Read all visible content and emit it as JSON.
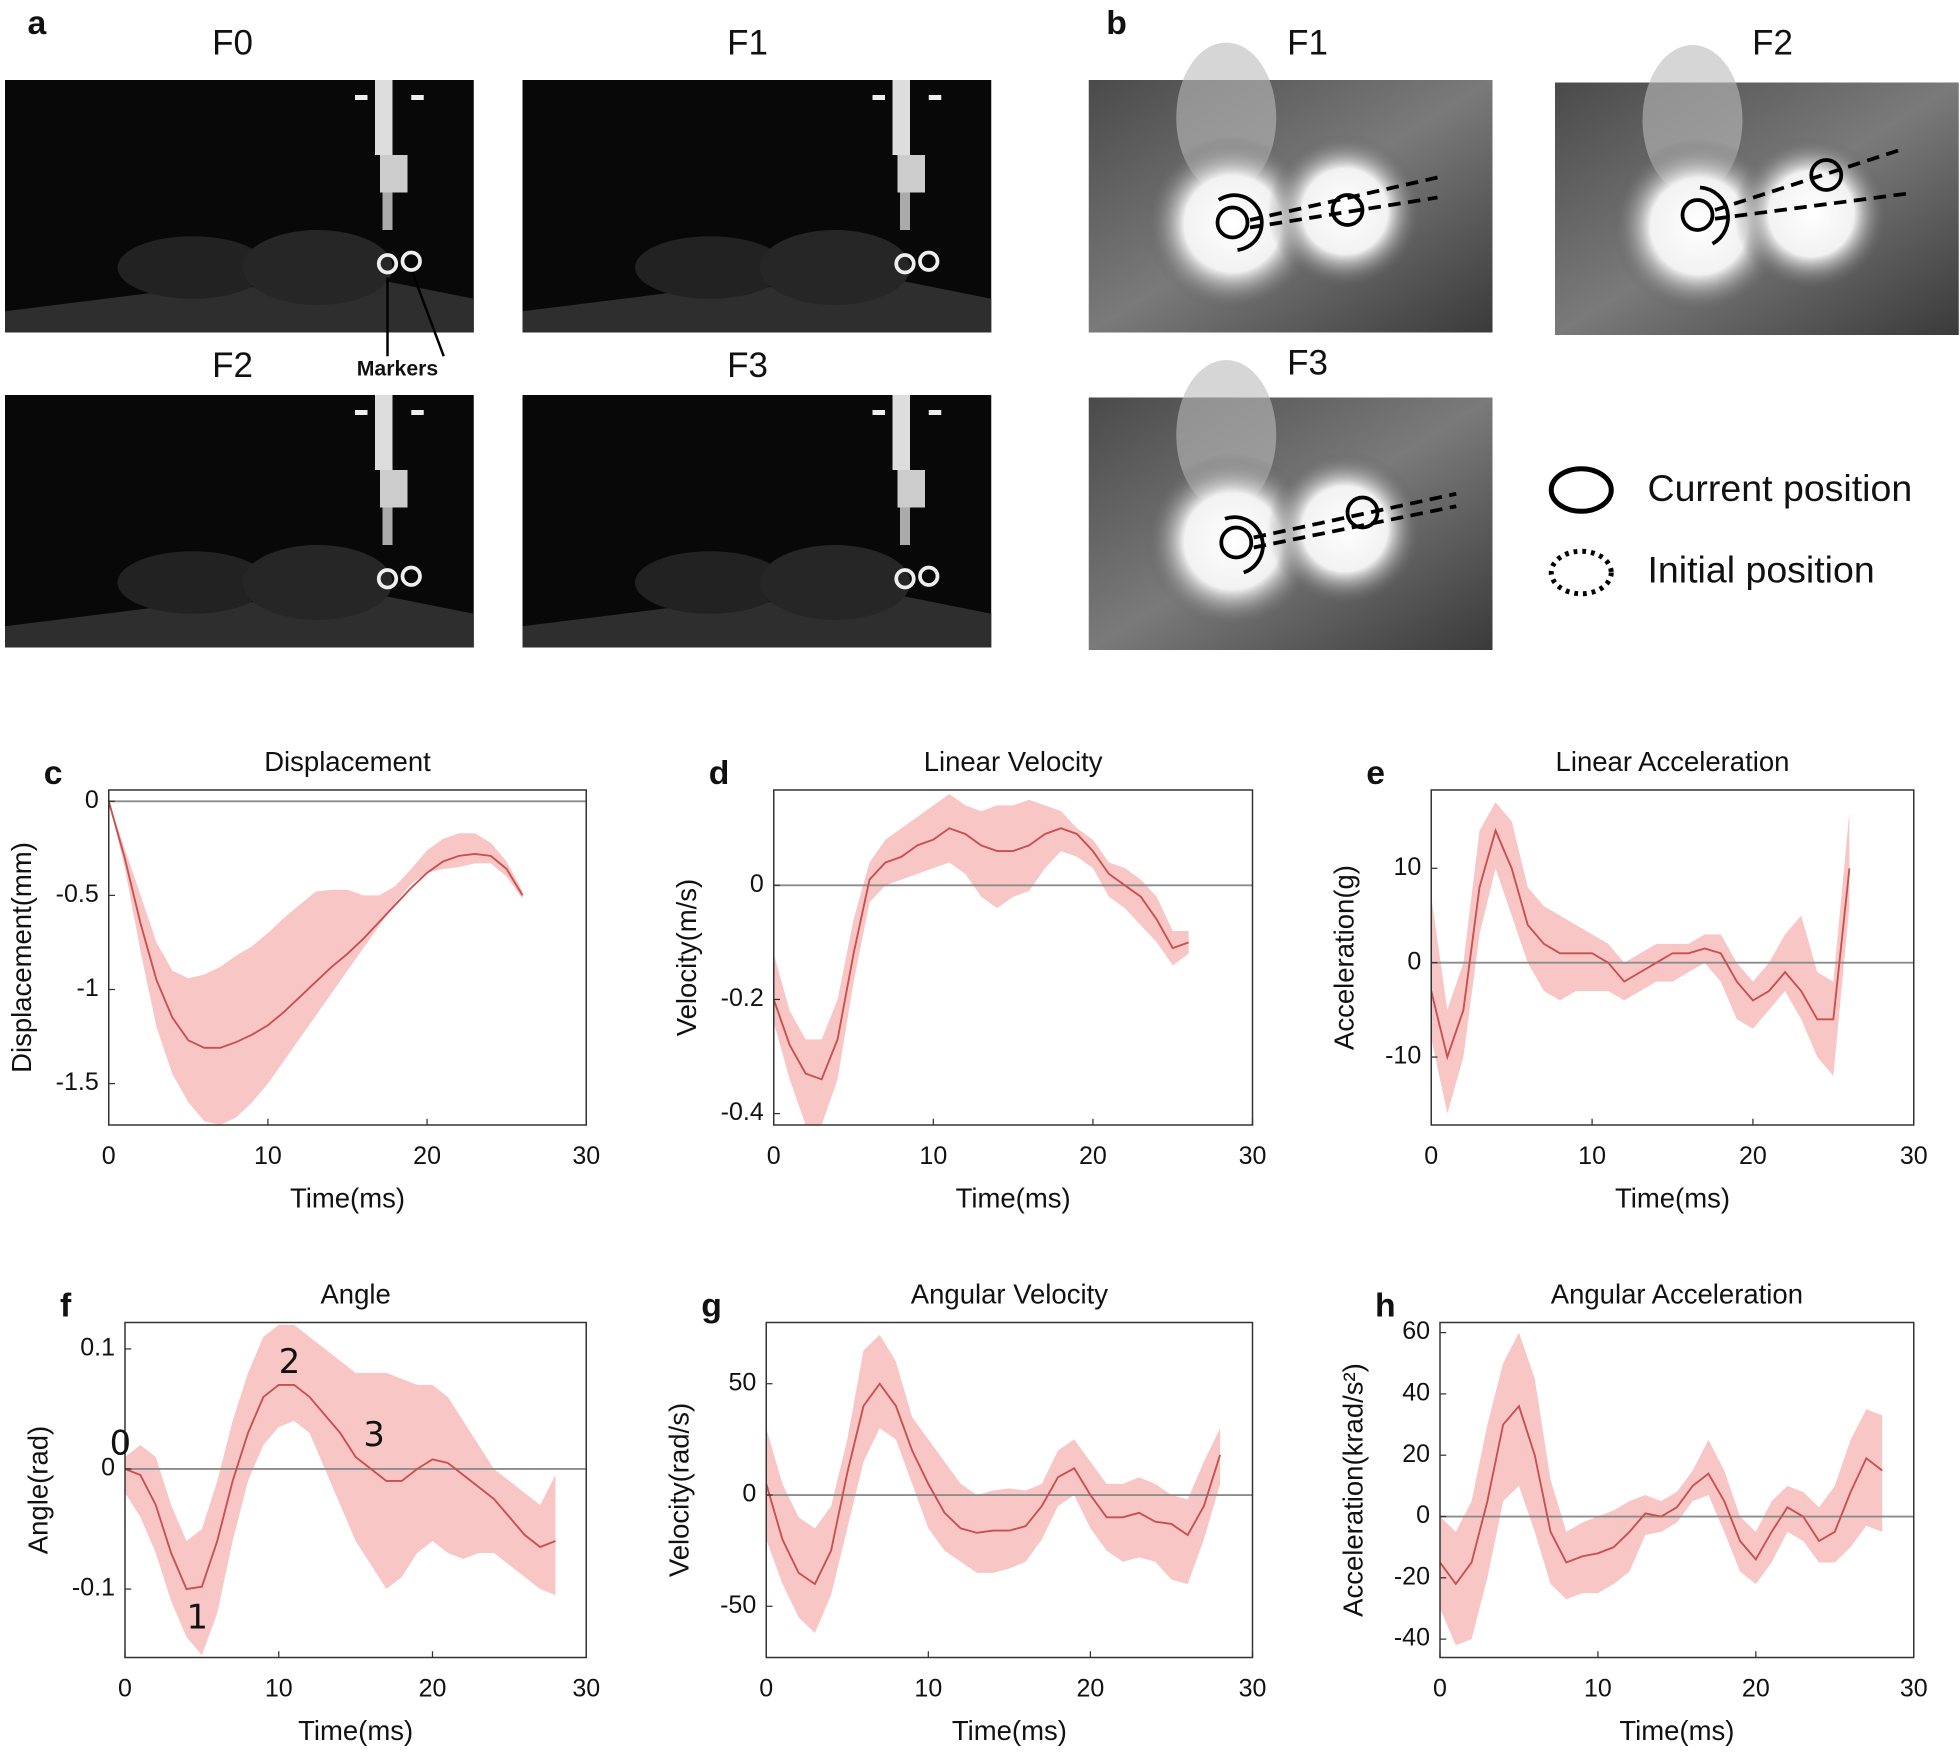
{
  "panel_a": {
    "label": "a",
    "frames": [
      "F0",
      "F1",
      "F2",
      "F3"
    ],
    "marker_label": "Markers"
  },
  "panel_b": {
    "label": "b",
    "frames": [
      "F1",
      "F2",
      "F3"
    ],
    "legend": [
      "Current position",
      "Initial position"
    ]
  },
  "chart_data": [
    {
      "type": "line",
      "panel_label": "c",
      "title": "Displacement",
      "xlabel": "Time(ms)",
      "ylabel": "Displacement(mm)",
      "xlim": [
        0,
        30
      ],
      "xticks": [
        0,
        10,
        20,
        30
      ],
      "ylim": [
        -1.72,
        0.06
      ],
      "yticks": [
        -1.5,
        -1,
        -0.5,
        0
      ],
      "zero_line": true,
      "x": [
        0,
        1,
        2,
        3,
        4,
        5,
        6,
        7,
        8,
        9,
        10,
        11,
        12,
        13,
        14,
        15,
        16,
        17,
        18,
        19,
        20,
        21,
        22,
        23,
        24,
        25,
        26
      ],
      "series": [
        {
          "color": "#c8504f",
          "band_color": "#f9c6c6",
          "values": [
            0,
            -0.3,
            -0.65,
            -0.95,
            -1.15,
            -1.27,
            -1.31,
            -1.31,
            -1.28,
            -1.24,
            -1.19,
            -1.12,
            -1.04,
            -0.96,
            -0.88,
            -0.81,
            -0.73,
            -0.64,
            -0.55,
            -0.46,
            -0.38,
            -0.32,
            -0.29,
            -0.28,
            -0.29,
            -0.36,
            -0.5
          ],
          "lower": [
            0,
            -0.35,
            -0.8,
            -1.2,
            -1.45,
            -1.6,
            -1.7,
            -1.72,
            -1.68,
            -1.6,
            -1.5,
            -1.38,
            -1.26,
            -1.14,
            -1.02,
            -0.9,
            -0.78,
            -0.66,
            -0.54,
            -0.44,
            -0.38,
            -0.36,
            -0.35,
            -0.33,
            -0.33,
            -0.4,
            -0.52
          ],
          "upper": [
            0,
            -0.25,
            -0.5,
            -0.75,
            -0.9,
            -0.94,
            -0.92,
            -0.88,
            -0.82,
            -0.77,
            -0.7,
            -0.62,
            -0.55,
            -0.48,
            -0.47,
            -0.47,
            -0.5,
            -0.5,
            -0.45,
            -0.36,
            -0.26,
            -0.2,
            -0.17,
            -0.17,
            -0.22,
            -0.32,
            -0.48
          ]
        }
      ]
    },
    {
      "type": "line",
      "panel_label": "d",
      "title": "Linear Velocity",
      "xlabel": "Time(ms)",
      "ylabel": "Velocity(m/s)",
      "xlim": [
        0,
        30
      ],
      "xticks": [
        0,
        10,
        20,
        30
      ],
      "ylim": [
        -0.42,
        0.167
      ],
      "yticks": [
        -0.4,
        -0.2,
        0
      ],
      "zero_line": true,
      "x": [
        0,
        1,
        2,
        3,
        4,
        5,
        6,
        7,
        8,
        9,
        10,
        11,
        12,
        13,
        14,
        15,
        16,
        17,
        18,
        19,
        20,
        21,
        22,
        23,
        24,
        25,
        26
      ],
      "series": [
        {
          "color": "#c8504f",
          "band_color": "#f9c6c6",
          "values": [
            -0.2,
            -0.28,
            -0.33,
            -0.34,
            -0.27,
            -0.12,
            0.01,
            0.04,
            0.05,
            0.07,
            0.08,
            0.1,
            0.09,
            0.07,
            0.06,
            0.06,
            0.07,
            0.09,
            0.1,
            0.09,
            0.06,
            0.02,
            0,
            -0.02,
            -0.06,
            -0.11,
            -0.1
          ],
          "lower": [
            -0.24,
            -0.34,
            -0.42,
            -0.42,
            -0.34,
            -0.17,
            -0.03,
            0,
            0.01,
            0.02,
            0.03,
            0.04,
            0.02,
            -0.02,
            -0.04,
            -0.02,
            -0.01,
            0.03,
            0.06,
            0.05,
            0.03,
            -0.02,
            -0.04,
            -0.07,
            -0.1,
            -0.14,
            -0.12
          ],
          "upper": [
            -0.12,
            -0.22,
            -0.27,
            -0.27,
            -0.2,
            -0.06,
            0.04,
            0.08,
            0.1,
            0.12,
            0.14,
            0.16,
            0.14,
            0.13,
            0.14,
            0.14,
            0.15,
            0.14,
            0.13,
            0.1,
            0.08,
            0.04,
            0.03,
            0.01,
            -0.02,
            -0.08,
            -0.08
          ]
        }
      ]
    },
    {
      "type": "line",
      "panel_label": "e",
      "title": "Linear Acceleration",
      "xlabel": "Time(ms)",
      "ylabel": "Acceleration(g)",
      "xlim": [
        0,
        30
      ],
      "xticks": [
        0,
        10,
        20,
        30
      ],
      "ylim": [
        -17.2,
        18.3
      ],
      "yticks": [
        -10,
        0,
        10
      ],
      "zero_line": true,
      "x": [
        0,
        1,
        2,
        3,
        4,
        5,
        6,
        7,
        8,
        9,
        10,
        11,
        12,
        13,
        14,
        15,
        16,
        17,
        18,
        19,
        20,
        21,
        22,
        23,
        24,
        25,
        26
      ],
      "series": [
        {
          "color": "#c8504f",
          "band_color": "#f9c6c6",
          "values": [
            -3,
            -10,
            -5,
            8,
            14,
            10,
            4,
            2,
            1,
            1,
            1,
            0,
            -2,
            -1,
            0,
            1,
            1,
            1.5,
            1,
            -2,
            -4,
            -3,
            -1,
            -3,
            -6,
            -6,
            10
          ],
          "lower": [
            -8,
            -16,
            -10,
            3,
            10,
            5,
            0,
            -3,
            -4,
            -3,
            -3,
            -3,
            -4,
            -3,
            -2,
            -2,
            -1,
            0,
            -2,
            -6,
            -7,
            -5,
            -3,
            -6,
            -10,
            -12,
            6
          ],
          "upper": [
            7,
            -5,
            0,
            14,
            17,
            15,
            8,
            6,
            5,
            4,
            3,
            2,
            0,
            1,
            2,
            2,
            2,
            3,
            3,
            0,
            -2,
            0,
            3,
            5,
            -1,
            -2,
            16
          ]
        }
      ]
    },
    {
      "type": "line",
      "panel_label": "f",
      "title": "Angle",
      "xlabel": "Time(ms)",
      "ylabel": "Angle(rad)",
      "xlim": [
        0,
        30
      ],
      "xticks": [
        0,
        10,
        20,
        30
      ],
      "ylim": [
        -0.157,
        0.122
      ],
      "yticks": [
        -0.1,
        0,
        0.1
      ],
      "zero_line": true,
      "x": [
        0,
        1,
        2,
        3,
        4,
        5,
        6,
        7,
        8,
        9,
        10,
        11,
        12,
        13,
        14,
        15,
        16,
        17,
        18,
        19,
        20,
        21,
        22,
        23,
        24,
        25,
        26,
        27,
        28
      ],
      "series": [
        {
          "color": "#c8504f",
          "band_color": "#f9c6c6",
          "values": [
            0,
            -0.005,
            -0.03,
            -0.07,
            -0.1,
            -0.098,
            -0.06,
            -0.01,
            0.03,
            0.06,
            0.07,
            0.07,
            0.06,
            0.045,
            0.03,
            0.01,
            0,
            -0.01,
            -0.01,
            0,
            0.008,
            0.005,
            -0.005,
            -0.015,
            -0.025,
            -0.04,
            -0.055,
            -0.065,
            -0.06
          ],
          "lower": [
            -0.02,
            -0.04,
            -0.07,
            -0.11,
            -0.14,
            -0.155,
            -0.12,
            -0.06,
            -0.01,
            0.02,
            0.035,
            0.04,
            0.03,
            0,
            -0.03,
            -0.06,
            -0.08,
            -0.1,
            -0.09,
            -0.07,
            -0.06,
            -0.07,
            -0.075,
            -0.07,
            -0.07,
            -0.08,
            -0.09,
            -0.1,
            -0.105
          ],
          "upper": [
            0.01,
            0.02,
            0.01,
            -0.03,
            -0.06,
            -0.05,
            -0.01,
            0.04,
            0.08,
            0.11,
            0.12,
            0.12,
            0.11,
            0.1,
            0.09,
            0.08,
            0.08,
            0.08,
            0.075,
            0.07,
            0.07,
            0.06,
            0.04,
            0.02,
            0,
            -0.01,
            -0.02,
            -0.03,
            -0.005
          ]
        }
      ],
      "annotations": [
        {
          "text": "0",
          "x": -0.3,
          "y": 0.02
        },
        {
          "text": "1",
          "x": 4.7,
          "y": -0.125
        },
        {
          "text": "2",
          "x": 10.7,
          "y": 0.088
        },
        {
          "text": "3",
          "x": 16.2,
          "y": 0.027
        }
      ]
    },
    {
      "type": "line",
      "panel_label": "g",
      "title": "Angular Velocity",
      "xlabel": "Time(ms)",
      "ylabel": "Velocity(rad/s)",
      "xlim": [
        0,
        30
      ],
      "xticks": [
        0,
        10,
        20,
        30
      ],
      "ylim": [
        -73,
        77.5
      ],
      "yticks": [
        -50,
        0,
        50
      ],
      "zero_line": true,
      "x": [
        0,
        1,
        2,
        3,
        4,
        5,
        6,
        7,
        8,
        9,
        10,
        11,
        12,
        13,
        14,
        15,
        16,
        17,
        18,
        19,
        20,
        21,
        22,
        23,
        24,
        25,
        26,
        27,
        28
      ],
      "series": [
        {
          "color": "#c8504f",
          "band_color": "#f9c6c6",
          "values": [
            5,
            -20,
            -35,
            -40,
            -25,
            10,
            40,
            50,
            40,
            20,
            5,
            -8,
            -15,
            -17,
            -16,
            -16,
            -14,
            -5,
            8,
            12,
            0,
            -10,
            -10,
            -8,
            -12,
            -13,
            -18,
            -5,
            18
          ],
          "lower": [
            -20,
            -40,
            -55,
            -62,
            -45,
            -15,
            15,
            30,
            25,
            5,
            -15,
            -25,
            -30,
            -35,
            -35,
            -33,
            -30,
            -20,
            -5,
            0,
            -15,
            -25,
            -30,
            -28,
            -30,
            -38,
            -40,
            -20,
            5
          ],
          "upper": [
            30,
            5,
            -10,
            -15,
            -5,
            25,
            65,
            72,
            60,
            35,
            25,
            15,
            5,
            0,
            2,
            3,
            2,
            5,
            20,
            25,
            15,
            5,
            5,
            8,
            5,
            0,
            -2,
            15,
            30
          ]
        }
      ]
    },
    {
      "type": "line",
      "panel_label": "h",
      "title": "Angular Acceleration",
      "xlabel": "Time(ms)",
      "ylabel": "Acceleration(krad/s²)",
      "xlim": [
        0,
        30
      ],
      "xticks": [
        0,
        10,
        20,
        30
      ],
      "ylim": [
        -46,
        63.3
      ],
      "yticks": [
        -40,
        -20,
        0,
        20,
        40,
        60
      ],
      "zero_line": true,
      "x": [
        0,
        1,
        2,
        3,
        4,
        5,
        6,
        7,
        8,
        9,
        10,
        11,
        12,
        13,
        14,
        15,
        16,
        17,
        18,
        19,
        20,
        21,
        22,
        23,
        24,
        25,
        26,
        27,
        28
      ],
      "series": [
        {
          "color": "#c8504f",
          "band_color": "#f9c6c6",
          "values": [
            -15,
            -22,
            -15,
            5,
            30,
            36,
            20,
            -5,
            -15,
            -13,
            -12,
            -10,
            -5,
            1,
            0,
            3,
            10,
            14,
            5,
            -8,
            -14,
            -5,
            3,
            0,
            -8,
            -5,
            8,
            19,
            15
          ],
          "lower": [
            -30,
            -42,
            -40,
            -20,
            5,
            10,
            -5,
            -22,
            -27,
            -25,
            -25,
            -22,
            -18,
            -6,
            -5,
            -2,
            5,
            7,
            -5,
            -18,
            -22,
            -15,
            -5,
            -8,
            -15,
            -15,
            -10,
            -3,
            -5
          ],
          "upper": [
            0,
            -5,
            5,
            30,
            50,
            60,
            45,
            12,
            -5,
            -2,
            0,
            2,
            5,
            7,
            5,
            8,
            15,
            25,
            15,
            0,
            -5,
            5,
            10,
            8,
            3,
            10,
            25,
            35,
            33
          ]
        }
      ]
    }
  ]
}
